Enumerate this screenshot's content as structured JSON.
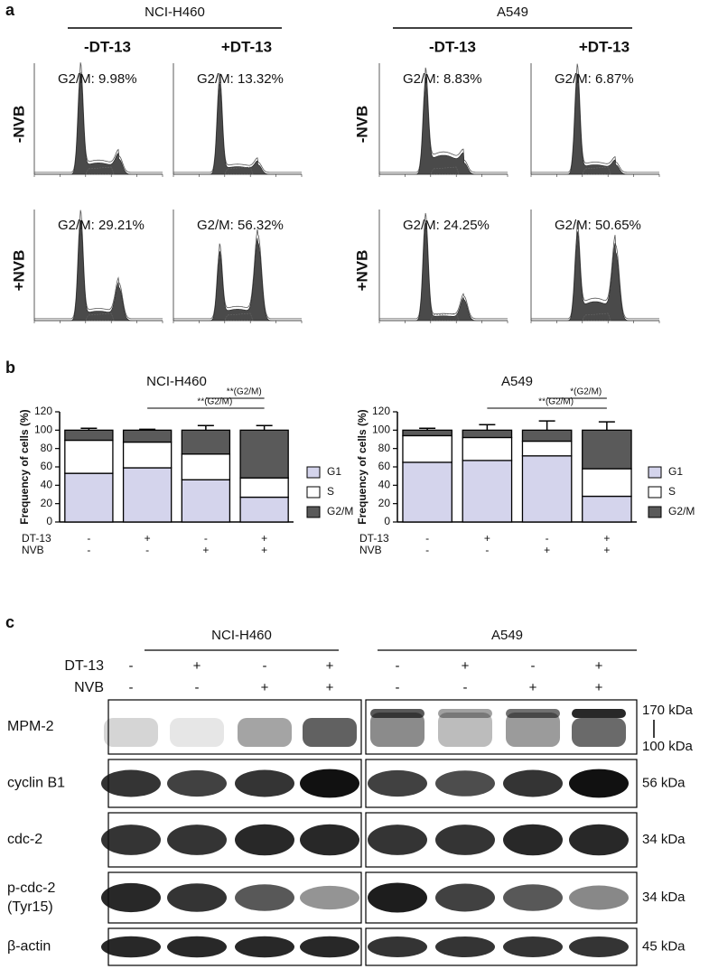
{
  "panel_labels": [
    "a",
    "b",
    "c"
  ],
  "panel_a": {
    "groups": [
      {
        "name": "NCI-H460",
        "columns": [
          "-DT-13",
          "+DT-13"
        ]
      },
      {
        "name": "A549",
        "columns": [
          "-DT-13",
          "+DT-13"
        ]
      }
    ],
    "rows": [
      "-NVB",
      "+NVB"
    ],
    "g2m": [
      [
        "G2/M: 9.98%",
        "G2/M: 13.32%",
        "G2/M: 8.83%",
        "G2/M: 6.87%"
      ],
      [
        "G2/M: 29.21%",
        "G2/M: 56.32%",
        "G2/M: 24.25%",
        "G2/M: 50.65%"
      ]
    ]
  },
  "chart_data": [
    {
      "type": "bar",
      "stacked": true,
      "title": "NCI-H460",
      "ylabel": "Frequency of cells (%)",
      "categories": [
        null,
        null,
        null,
        null
      ],
      "conditions": [
        {
          "name": "DT-13",
          "values": [
            "-",
            "+",
            "-",
            "+"
          ]
        },
        {
          "name": "NVB",
          "values": [
            "-",
            "-",
            "+",
            "+"
          ]
        }
      ],
      "series": [
        {
          "name": "G1",
          "color": "#d4d4ec",
          "values": [
            53,
            59,
            46,
            27
          ],
          "errors": [
            3,
            1,
            2,
            9
          ]
        },
        {
          "name": "S",
          "color": "#ffffff",
          "values": [
            36,
            28,
            28,
            21
          ],
          "errors": [
            2,
            1,
            7,
            3
          ]
        },
        {
          "name": "G2/M",
          "color": "#5a5a5a",
          "values": [
            11,
            13,
            26,
            52
          ],
          "errors": [
            2,
            1,
            5,
            5
          ]
        }
      ],
      "annotations": [
        "**(G2/M)",
        "**(G2/M)"
      ],
      "ylim": [
        0,
        120
      ],
      "yticks": [
        0,
        20,
        40,
        60,
        80,
        100,
        120
      ],
      "legend": "right"
    },
    {
      "type": "bar",
      "stacked": true,
      "title": "A549",
      "ylabel": "Frequency of cells (%)",
      "categories": [
        null,
        null,
        null,
        null
      ],
      "conditions": [
        {
          "name": "DT-13",
          "values": [
            "-",
            "+",
            "-",
            "+"
          ]
        },
        {
          "name": "NVB",
          "values": [
            "-",
            "-",
            "+",
            "+"
          ]
        }
      ],
      "series": [
        {
          "name": "G1",
          "color": "#d4d4ec",
          "values": [
            65,
            67,
            72,
            28
          ],
          "errors": [
            9,
            1,
            9,
            6
          ]
        },
        {
          "name": "S",
          "color": "#ffffff",
          "values": [
            29,
            25,
            16,
            30
          ],
          "errors": [
            3,
            2,
            3,
            14
          ]
        },
        {
          "name": "G2/M",
          "color": "#5a5a5a",
          "values": [
            6,
            8,
            12,
            42
          ],
          "errors": [
            2,
            6,
            10,
            9
          ]
        }
      ],
      "annotations": [
        "*(G2/M)",
        "**(G2/M)"
      ],
      "ylim": [
        0,
        120
      ],
      "yticks": [
        0,
        20,
        40,
        60,
        80,
        100,
        120
      ],
      "legend": "right"
    }
  ],
  "panel_c": {
    "groups": [
      "NCI-H460",
      "A549"
    ],
    "treatments": [
      {
        "name": "DT-13",
        "lanes": [
          "-",
          "+",
          "-",
          "+",
          "-",
          "+",
          "-",
          "+"
        ]
      },
      {
        "name": "NVB",
        "lanes": [
          "-",
          "-",
          "+",
          "+",
          "-",
          "-",
          "+",
          "+"
        ]
      }
    ],
    "blots": [
      {
        "name": "MPM-2",
        "sizes": [
          "170 kDa",
          "100 kDa"
        ]
      },
      {
        "name": "cyclin B1",
        "sizes": [
          "56 kDa"
        ]
      },
      {
        "name": "cdc-2",
        "sizes": [
          "34 kDa"
        ]
      },
      {
        "name": "p-cdc-2",
        "subname": "(Tyr15)",
        "sizes": [
          "34 kDa"
        ]
      },
      {
        "name": "β-actin",
        "sizes": [
          "45 kDa"
        ]
      }
    ]
  }
}
